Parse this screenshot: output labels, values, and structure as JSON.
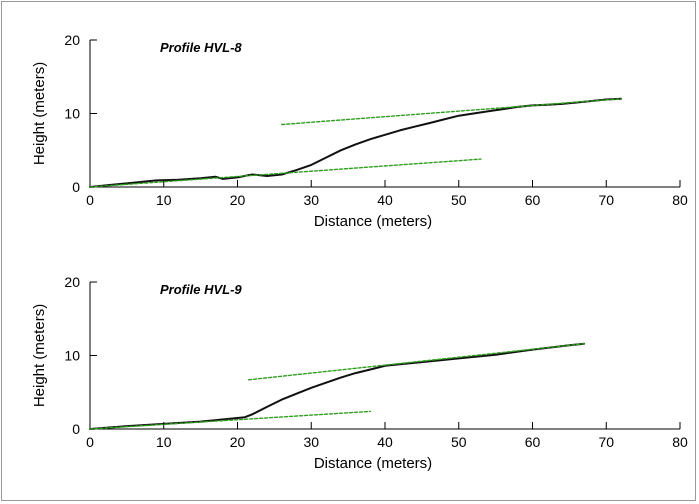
{
  "chart_data": [
    {
      "type": "line",
      "title": "Profile HVL-8",
      "xlabel": "Distance (meters)",
      "ylabel": "Height (meters)",
      "xlim": [
        0,
        80
      ],
      "ylim": [
        0,
        20
      ],
      "xticks": [
        0,
        10,
        20,
        30,
        40,
        50,
        60,
        70,
        80
      ],
      "yticks": [
        0,
        10,
        20
      ],
      "grid": false,
      "series": [
        {
          "style": "solid",
          "color": "#111111",
          "x": [
            0,
            3,
            6,
            9,
            12,
            15,
            17,
            18,
            20,
            22,
            24,
            26,
            28,
            30,
            32,
            34,
            36,
            38,
            40,
            42,
            44,
            46,
            48,
            50,
            52,
            54,
            56,
            58,
            60,
            62,
            64,
            66,
            68,
            70,
            72
          ],
          "y": [
            0,
            0.3,
            0.6,
            0.9,
            1.0,
            1.2,
            1.4,
            1.1,
            1.3,
            1.7,
            1.5,
            1.7,
            2.3,
            3.0,
            4.0,
            5.0,
            5.8,
            6.5,
            7.1,
            7.7,
            8.2,
            8.7,
            9.2,
            9.7,
            10.0,
            10.3,
            10.6,
            10.9,
            11.1,
            11.2,
            11.3,
            11.5,
            11.7,
            11.9,
            12.0
          ]
        },
        {
          "style": "dashed",
          "color": "#2f9e1f",
          "x": [
            0,
            53
          ],
          "y": [
            0,
            3.8
          ]
        },
        {
          "style": "dashed",
          "color": "#2f9e1f",
          "x": [
            26,
            72
          ],
          "y": [
            8.5,
            12.0
          ]
        }
      ]
    },
    {
      "type": "line",
      "title": "Profile HVL-9",
      "xlabel": "Distance (meters)",
      "ylabel": "Height (meters)",
      "xlim": [
        0,
        80
      ],
      "ylim": [
        0,
        20
      ],
      "xticks": [
        0,
        10,
        20,
        30,
        40,
        50,
        60,
        70,
        80
      ],
      "yticks": [
        0,
        10,
        20
      ],
      "grid": false,
      "series": [
        {
          "style": "solid",
          "color": "#111111",
          "x": [
            0,
            5,
            10,
            15,
            20,
            21,
            22,
            24,
            26,
            28,
            30,
            32,
            34,
            36,
            38,
            40,
            42,
            45,
            50,
            55,
            60,
            65,
            67
          ],
          "y": [
            0,
            0.4,
            0.7,
            1.0,
            1.5,
            1.6,
            2.0,
            3.0,
            4.0,
            4.8,
            5.6,
            6.3,
            7.0,
            7.6,
            8.1,
            8.6,
            8.8,
            9.1,
            9.6,
            10.1,
            10.8,
            11.4,
            11.6
          ]
        },
        {
          "style": "dashed",
          "color": "#2f9e1f",
          "x": [
            0,
            38
          ],
          "y": [
            0,
            2.4
          ]
        },
        {
          "style": "dashed",
          "color": "#2f9e1f",
          "x": [
            21.5,
            67
          ],
          "y": [
            6.7,
            11.6
          ]
        }
      ]
    }
  ]
}
